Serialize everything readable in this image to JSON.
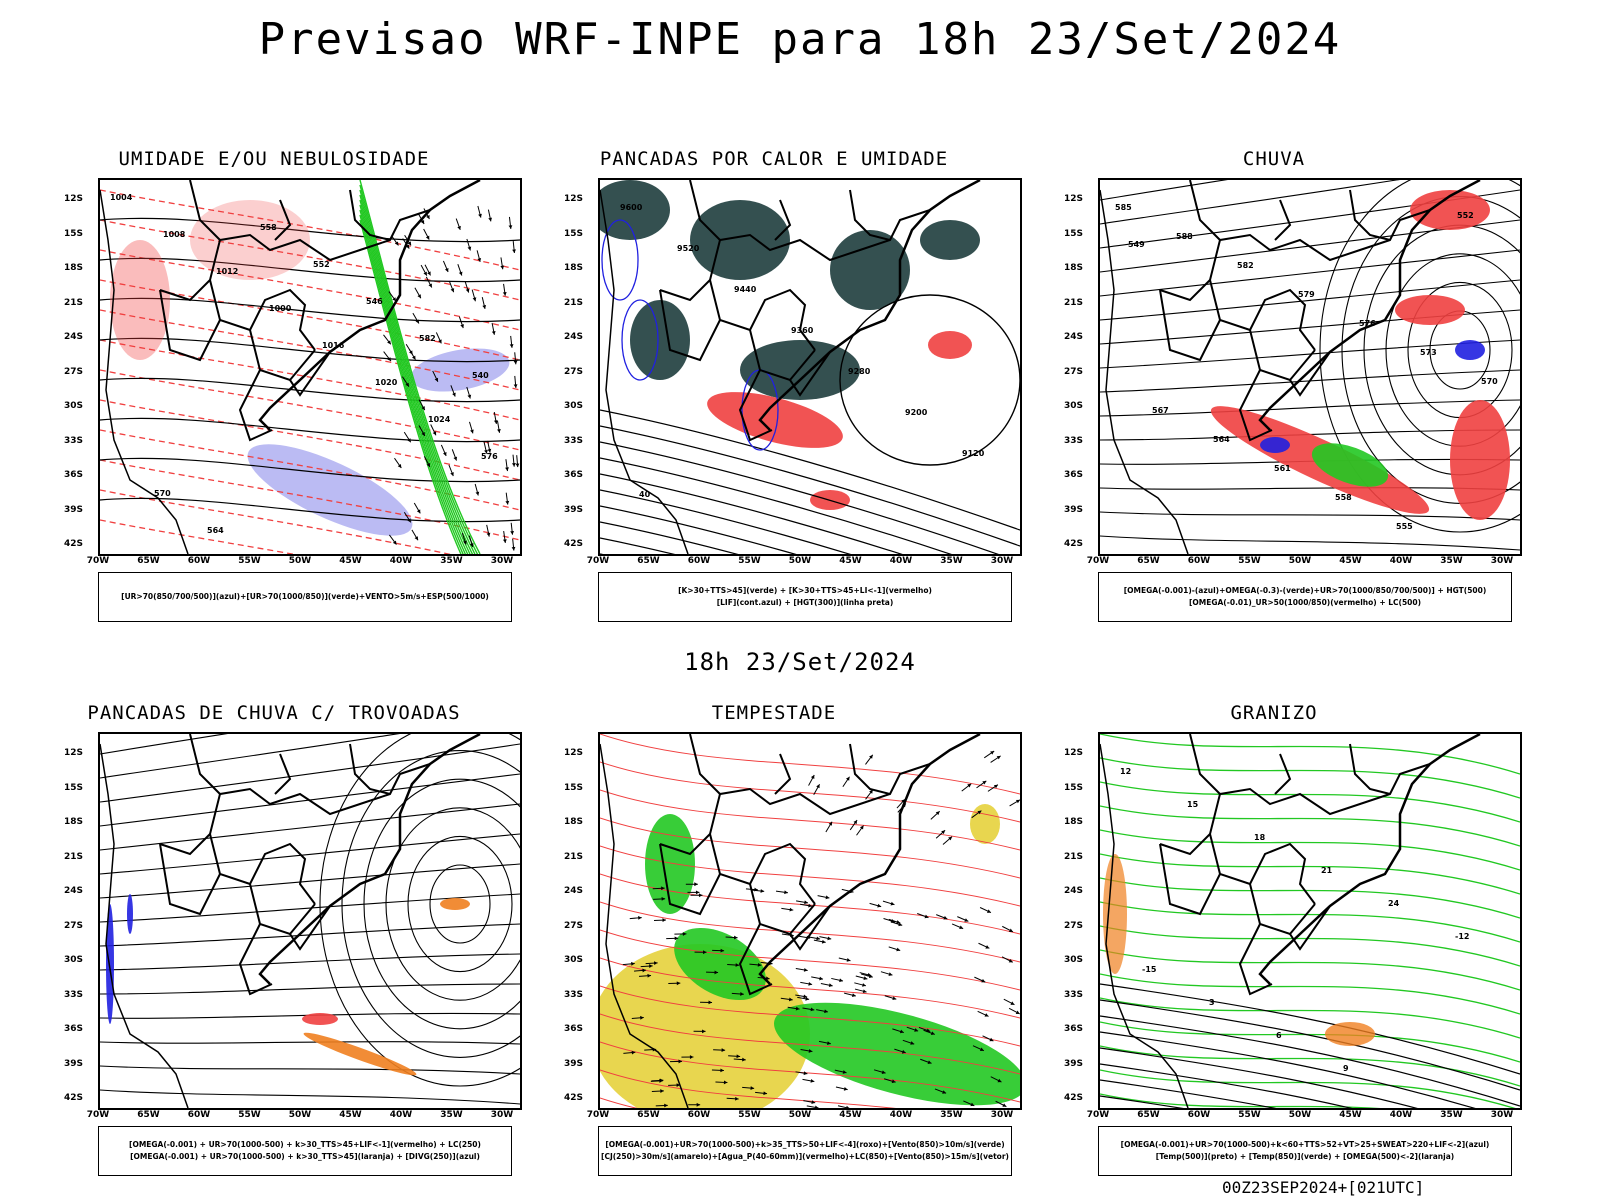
{
  "title": "Previsao WRF-INPE  para 18h 23/Set/2024",
  "mid_title": "18h 23/Set/2024",
  "footer": "00Z23SEP2024+[021UTC]",
  "lat_labels": [
    "12S",
    "15S",
    "18S",
    "21S",
    "24S",
    "27S",
    "30S",
    "33S",
    "36S",
    "39S",
    "42S"
  ],
  "lon_labels": [
    "70W",
    "65W",
    "60W",
    "55W",
    "50W",
    "45W",
    "40W",
    "35W",
    "30W"
  ],
  "colors": {
    "red": "#f04040",
    "green": "#22c822",
    "blue": "#2020e0",
    "lavender": "#aaaaf0",
    "darkteal": "#1e3d3d",
    "yellow": "#e6d23c",
    "orange": "#f08020",
    "black": "#000000"
  },
  "panels": [
    {
      "title": "UMIDADE E/OU NEBULOSIDADE",
      "legend": [
        "[UR>70(850/700/500)](azul)+[UR>70(1000/850)](verde)+VENTO>5m/s+ESP(500/1000)"
      ],
      "contour_labels": [
        "1004",
        "1008",
        "1012",
        "1000",
        "1016",
        "1020",
        "1024",
        "576",
        "570",
        "564",
        "558",
        "552",
        "546",
        "582",
        "540"
      ]
    },
    {
      "title": "PANCADAS POR CALOR E UMIDADE",
      "legend": [
        "[K>30+TTS>45](verde) + [K>30+TTS>45+LI<-1](vermelho)",
        "[LIF](cont.azul) + [HGT(300)](linha preta)"
      ],
      "contour_labels": [
        "9600",
        "9520",
        "9440",
        "9360",
        "9280",
        "9200",
        "9120",
        "40"
      ]
    },
    {
      "title": "CHUVA",
      "legend": [
        "[OMEGA(-0.001)-(azul)+OMEGA(-0.3)-(verde)+UR>70(1000/850/700/500)] + HGT(500)",
        "[OMEGA(-0.01)_UR>50(1000/850)(vermelho) + LC(500)"
      ],
      "contour_labels": [
        "585",
        "588",
        "582",
        "579",
        "576",
        "573",
        "570",
        "567",
        "564",
        "561",
        "558",
        "555",
        "552",
        "549"
      ]
    },
    {
      "title": "PANCADAS DE CHUVA C/ TROVOADAS",
      "legend": [
        "[OMEGA(-0.001) + UR>70(1000-500) + k>30_TTS>45+LIF<-1](vermelho) + LC(250)",
        "[OMEGA(-0.001) + UR>70(1000-500) + k>30_TTS>45](laranja) + [DIVG(250)](azul)"
      ],
      "contour_labels": []
    },
    {
      "title": "TEMPESTADE",
      "legend": [
        "[OMEGA(-0.001)+UR>70(1000-500)+k>35_TTS>50+LIF<-4](roxo)+[Vento(850)>10m/s](verde)",
        "[CJ(250)>30m/s](amarelo)+[Agua_P(40-60mm)](vermelho)+LC(850)+[Vento(850)>15m/s](vetor)"
      ],
      "contour_labels": []
    },
    {
      "title": "GRANIZO",
      "legend": [
        "[OMEGA(-0.001)+UR>70(1000-500)+k<60+TTS>52+VT>25+SWEAT>220+LIF<-2](azul)",
        "[Temp(500)](preto) + [Temp(850)](verde) + [OMEGA(500)<-2](laranja)"
      ],
      "contour_labels": [
        "12",
        "15",
        "18",
        "21",
        "24",
        "-12",
        "-15",
        "3",
        "6",
        "9"
      ]
    }
  ]
}
